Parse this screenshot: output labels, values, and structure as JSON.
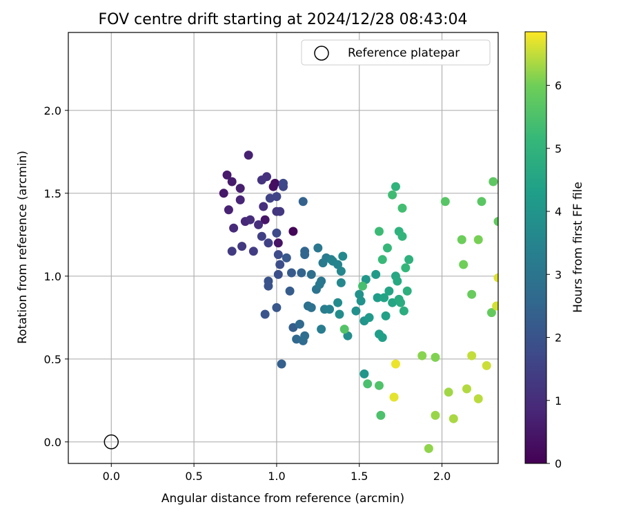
{
  "chart_data": {
    "type": "scatter",
    "title": "FOV centre drift starting at 2024/12/28 08:43:04",
    "xlabel": "Angular distance from reference (arcmin)",
    "ylabel": "Rotation from reference (arcmin)",
    "xlim": [
      -0.26,
      2.34
    ],
    "ylim": [
      -0.13,
      2.47
    ],
    "x_ticks": [
      "0.0",
      "0.5",
      "1.0",
      "1.5",
      "2.0"
    ],
    "x_tick_values": [
      0.0,
      0.5,
      1.0,
      1.5,
      2.0
    ],
    "y_ticks": [
      "0.0",
      "0.5",
      "1.0",
      "1.5",
      "2.0"
    ],
    "y_tick_values": [
      0.0,
      0.5,
      1.0,
      1.5,
      2.0
    ],
    "grid": true,
    "legend": {
      "label": "Reference platepar",
      "position": "top-right"
    },
    "reference_point": {
      "x": 0.0,
      "y": 0.0
    },
    "colorbar": {
      "label": "Hours from first FF file",
      "colormap": "viridis",
      "range": [
        0,
        6.85
      ],
      "ticks": [
        "0",
        "1",
        "2",
        "3",
        "4",
        "5",
        "6"
      ],
      "tick_values": [
        0,
        1,
        2,
        3,
        4,
        5,
        6
      ]
    },
    "points": [
      [
        1.1,
        1.27,
        0.1
      ],
      [
        0.99,
        1.56,
        0.25
      ],
      [
        0.98,
        1.54,
        0.3
      ],
      [
        1.01,
        1.2,
        0.4
      ],
      [
        0.93,
        1.34,
        0.45
      ],
      [
        0.68,
        1.5,
        0.5
      ],
      [
        0.7,
        1.61,
        0.55
      ],
      [
        0.73,
        1.57,
        0.6
      ],
      [
        0.78,
        1.53,
        0.65
      ],
      [
        0.83,
        1.73,
        0.7
      ],
      [
        0.71,
        1.4,
        0.75
      ],
      [
        0.78,
        1.46,
        0.8
      ],
      [
        0.81,
        1.33,
        0.85
      ],
      [
        0.74,
        1.29,
        0.9
      ],
      [
        0.84,
        1.34,
        0.95
      ],
      [
        0.89,
        1.31,
        1.0
      ],
      [
        0.92,
        1.42,
        1.05
      ],
      [
        0.94,
        1.6,
        1.1
      ],
      [
        0.91,
        1.58,
        1.15
      ],
      [
        1.0,
        1.39,
        1.2
      ],
      [
        1.02,
        1.39,
        1.25
      ],
      [
        0.79,
        1.18,
        1.3
      ],
      [
        0.73,
        1.15,
        1.35
      ],
      [
        0.86,
        1.15,
        1.4
      ],
      [
        0.91,
        1.24,
        1.45
      ],
      [
        0.95,
        1.2,
        1.5
      ],
      [
        0.96,
        1.47,
        1.55
      ],
      [
        1.0,
        1.48,
        1.6
      ],
      [
        1.04,
        1.54,
        1.65
      ],
      [
        1.04,
        1.56,
        1.7
      ],
      [
        1.0,
        1.26,
        1.75
      ],
      [
        1.01,
        1.13,
        1.8
      ],
      [
        1.02,
        1.07,
        1.85
      ],
      [
        1.01,
        1.01,
        1.9
      ],
      [
        0.95,
        0.97,
        1.95
      ],
      [
        0.95,
        0.94,
        2.0
      ],
      [
        0.93,
        0.77,
        2.05
      ],
      [
        1.0,
        0.81,
        2.1
      ],
      [
        1.06,
        1.11,
        2.15
      ],
      [
        1.09,
        1.02,
        2.2
      ],
      [
        1.08,
        0.91,
        2.25
      ],
      [
        1.1,
        0.69,
        2.3
      ],
      [
        1.03,
        0.47,
        2.35
      ],
      [
        1.16,
        1.45,
        2.4
      ],
      [
        1.15,
        1.02,
        2.45
      ],
      [
        1.17,
        1.15,
        2.5
      ],
      [
        1.17,
        1.13,
        2.55
      ],
      [
        1.12,
        0.62,
        2.6
      ],
      [
        1.14,
        0.71,
        2.65
      ],
      [
        1.16,
        0.61,
        2.7
      ],
      [
        1.17,
        0.64,
        2.75
      ],
      [
        1.21,
        1.01,
        2.8
      ],
      [
        1.19,
        0.82,
        2.85
      ],
      [
        1.21,
        0.81,
        2.9
      ],
      [
        1.24,
        0.92,
        2.95
      ],
      [
        1.27,
        0.97,
        3.0
      ],
      [
        1.25,
        1.17,
        3.05
      ],
      [
        1.26,
        0.95,
        3.1
      ],
      [
        1.28,
        1.08,
        3.15
      ],
      [
        1.3,
        1.11,
        3.2
      ],
      [
        1.27,
        0.68,
        3.25
      ],
      [
        1.29,
        0.8,
        3.3
      ],
      [
        1.33,
        1.1,
        3.35
      ],
      [
        1.32,
        0.8,
        3.4
      ],
      [
        1.34,
        1.09,
        3.45
      ],
      [
        1.37,
        1.07,
        3.5
      ],
      [
        1.39,
        1.03,
        3.55
      ],
      [
        1.39,
        0.96,
        3.6
      ],
      [
        1.4,
        1.12,
        3.65
      ],
      [
        1.37,
        0.84,
        3.7
      ],
      [
        1.38,
        0.77,
        3.75
      ],
      [
        1.43,
        0.64,
        3.8
      ],
      [
        1.48,
        0.79,
        3.85
      ],
      [
        1.5,
        0.89,
        3.9
      ],
      [
        1.51,
        0.85,
        3.95
      ],
      [
        1.53,
        0.73,
        4.0
      ],
      [
        1.53,
        0.41,
        4.05
      ],
      [
        1.54,
        0.98,
        4.1
      ],
      [
        1.56,
        0.75,
        4.15
      ],
      [
        1.6,
        1.01,
        4.2
      ],
      [
        1.61,
        0.87,
        4.25
      ],
      [
        1.62,
        0.65,
        4.3
      ],
      [
        1.64,
        0.63,
        4.35
      ],
      [
        1.66,
        0.76,
        4.4
      ],
      [
        1.65,
        0.87,
        4.45
      ],
      [
        1.68,
        0.91,
        4.5
      ],
      [
        1.7,
        0.84,
        4.55
      ],
      [
        1.72,
        1.0,
        4.6
      ],
      [
        1.73,
        0.97,
        4.65
      ],
      [
        1.74,
        0.86,
        4.7
      ],
      [
        1.75,
        0.84,
        4.75
      ],
      [
        1.77,
        0.79,
        4.8
      ],
      [
        1.79,
        0.91,
        4.85
      ],
      [
        1.8,
        1.1,
        4.9
      ],
      [
        1.74,
        1.27,
        4.95
      ],
      [
        1.72,
        1.54,
        5.0
      ],
      [
        1.76,
        1.24,
        5.05
      ],
      [
        1.78,
        1.05,
        5.1
      ],
      [
        1.67,
        1.17,
        5.15
      ],
      [
        1.64,
        1.1,
        5.2
      ],
      [
        1.62,
        1.27,
        5.25
      ],
      [
        1.7,
        1.49,
        5.3
      ],
      [
        1.76,
        1.41,
        5.35
      ],
      [
        1.52,
        0.94,
        5.4
      ],
      [
        1.55,
        0.35,
        5.45
      ],
      [
        1.63,
        0.16,
        5.5
      ],
      [
        1.62,
        0.34,
        5.55
      ],
      [
        1.41,
        0.68,
        5.6
      ],
      [
        2.02,
        1.45,
        5.65
      ],
      [
        2.24,
        1.45,
        5.7
      ],
      [
        2.31,
        1.57,
        5.75
      ],
      [
        2.34,
        1.33,
        5.8
      ],
      [
        2.3,
        0.78,
        5.85
      ],
      [
        2.18,
        0.89,
        5.9
      ],
      [
        2.12,
        1.22,
        5.95
      ],
      [
        2.13,
        1.07,
        6.0
      ],
      [
        2.22,
        1.22,
        6.05
      ],
      [
        1.96,
        0.51,
        6.1
      ],
      [
        1.88,
        0.52,
        6.15
      ],
      [
        1.92,
        -0.04,
        6.2
      ],
      [
        1.96,
        0.16,
        6.25
      ],
      [
        2.04,
        0.3,
        6.3
      ],
      [
        2.07,
        0.14,
        6.35
      ],
      [
        2.15,
        0.32,
        6.4
      ],
      [
        2.22,
        0.26,
        6.45
      ],
      [
        2.18,
        0.52,
        6.5
      ],
      [
        2.27,
        0.46,
        6.55
      ],
      [
        2.33,
        0.82,
        6.6
      ],
      [
        2.34,
        0.99,
        6.65
      ],
      [
        1.71,
        0.27,
        6.7
      ],
      [
        1.72,
        0.47,
        6.75
      ]
    ]
  }
}
